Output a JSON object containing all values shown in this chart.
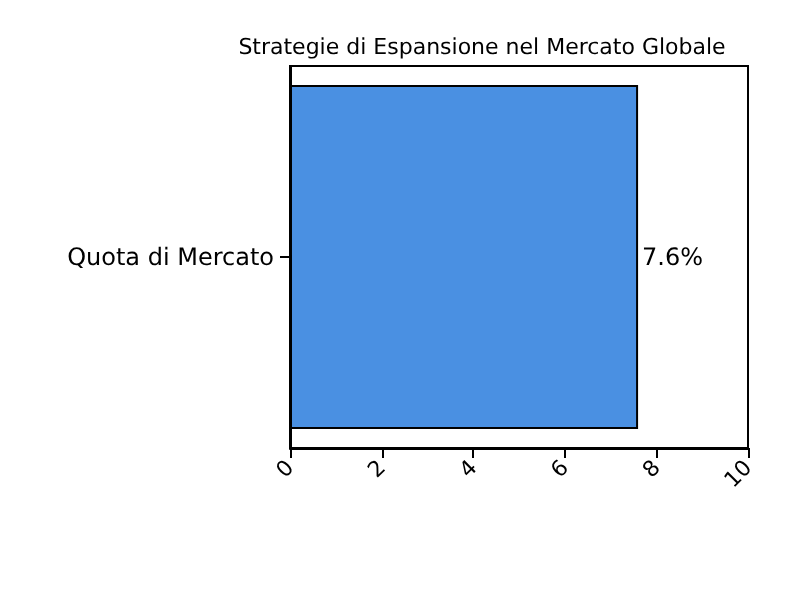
{
  "chart_data": {
    "type": "bar",
    "title": "Strategie di Espansione nel Mercato Globale",
    "orientation": "horizontal",
    "categories": [
      "Quota di Mercato"
    ],
    "series": [
      {
        "color": "#4a90e2",
        "values": [
          7.6
        ],
        "value_labels": [
          "7.6%"
        ]
      }
    ],
    "xlim": [
      0,
      10
    ],
    "xticks": [
      0,
      2,
      4,
      6,
      8,
      10
    ],
    "grid": false
  }
}
